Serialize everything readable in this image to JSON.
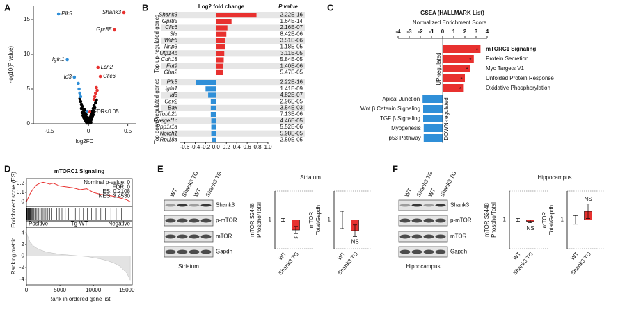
{
  "panel_labels": [
    "A",
    "B",
    "C",
    "D",
    "E",
    "F"
  ],
  "chart_data": [
    {
      "type": "scatter",
      "xlabel": "log2FC",
      "ylabel": "-log10(P value)",
      "legend_label": "FDR<0.05",
      "xlim": [
        -0.7,
        0.6
      ],
      "xticks": [
        -0.5,
        0,
        0.5
      ],
      "ylim": [
        0,
        17
      ],
      "yticks": [
        0,
        5,
        10,
        15
      ],
      "series": [
        {
          "color": "#000000",
          "x": [
            -0.1,
            -0.09,
            -0.09,
            -0.08,
            -0.08,
            -0.07,
            -0.07,
            -0.06,
            -0.06,
            -0.05,
            -0.05,
            -0.05,
            -0.04,
            -0.04,
            -0.03,
            -0.03,
            -0.03,
            -0.02,
            -0.02,
            -0.01,
            -0.01,
            0,
            0,
            0,
            0.01,
            0.01,
            0.02,
            0.02,
            0.03,
            0.03,
            0.03,
            0.04,
            0.04,
            0.05,
            0.05,
            0.06,
            0.06,
            0.07,
            0.07,
            0.08,
            0.09,
            -0.11,
            0.1,
            -0.02,
            0.02
          ],
          "values": [
            3.2,
            2.8,
            2.2,
            2.5,
            1.6,
            2.1,
            1.2,
            1.8,
            0.9,
            1.5,
            0.7,
            2.0,
            1.1,
            0.5,
            0.8,
            0.3,
            1.3,
            0.4,
            0.9,
            0.2,
            0.6,
            0.1,
            0.4,
            0.8,
            0.2,
            0.6,
            0.3,
            0.9,
            0.5,
            1.2,
            0.2,
            0.7,
            1.5,
            1.0,
            1.8,
            1.3,
            2.2,
            1.7,
            2.6,
            2.3,
            3.0,
            3.6,
            3.4,
            0.1,
            0.1
          ]
        },
        {
          "color": "#2f8fd8",
          "x": [
            -0.38,
            -0.27,
            -0.18,
            -0.13,
            -0.12,
            -0.11,
            -0.1
          ],
          "values": [
            15.8,
            9.2,
            6.7,
            5.8,
            5.0,
            4.4,
            3.9
          ],
          "labels": [
            "Plk5",
            "Igfn1",
            "Id3",
            null,
            null,
            null,
            null
          ]
        },
        {
          "color": "#e8312f",
          "x": [
            0.45,
            0.33,
            0.12,
            0.15,
            0.1,
            0.09,
            0.08,
            0.11,
            0.07
          ],
          "values": [
            16,
            13.5,
            8.1,
            6.8,
            5.2,
            4.4,
            3.9,
            4.8,
            3.5
          ],
          "labels": [
            "Shank3",
            "Gpr85",
            "Lcn2",
            "Clic6",
            null,
            null,
            null,
            null,
            null
          ]
        }
      ]
    },
    {
      "type": "bar",
      "orientation": "horizontal",
      "title": "Log2 fold change",
      "p_header": "P value",
      "xlim": [
        -0.7,
        1.0
      ],
      "xticks": [
        -0.6,
        -0.4,
        -0.2,
        {
          "value": 0,
          "label": "0.0"
        },
        0.2,
        0.4,
        0.6,
        0.8,
        {
          "value": 1,
          "label": "1.0"
        }
      ],
      "series": [
        {
          "name": "Top up-regulated genes",
          "color": "#e8312f",
          "categories": [
            "Shank3",
            "Gpr85",
            "Clic6",
            "Sla",
            "Wdr6",
            "Nrip3",
            "Utp14b",
            "Cdh18",
            "Fut9",
            "Glra2"
          ],
          "values": [
            0.78,
            0.3,
            0.22,
            0.2,
            0.18,
            0.17,
            0.16,
            0.15,
            0.14,
            0.13
          ],
          "p_values": [
            "2.22E-16",
            "1.64E-14",
            "2.16E-07",
            "8.42E-06",
            "3.51E-06",
            "1.18E-05",
            "3.11E-05",
            "5.84E-05",
            "1.40E-06",
            "5.47E-05"
          ]
        },
        {
          "name": "Top down-regulated genes",
          "color": "#2f8fd8",
          "categories": [
            "Plk5",
            "Igfn1",
            "Id3",
            "Cav2",
            "Bax",
            "Tubb2b",
            "Rasgef1c",
            "Ppp1r1a",
            "Notch1",
            "Rpl18a"
          ],
          "values": [
            -0.38,
            -0.2,
            -0.15,
            -0.1,
            -0.1,
            -0.1,
            -0.09,
            -0.09,
            -0.09,
            -0.08
          ],
          "p_values": [
            "2.22E-16",
            "1.41E-09",
            "4.82E-07",
            "2.96E-05",
            "3.54E-03",
            "7.13E-06",
            "4.46E-05",
            "5.52E-06",
            "5.98E-05",
            "2.59E-05"
          ]
        }
      ]
    },
    {
      "type": "bar",
      "orientation": "horizontal",
      "title": "GSEA (HALLMARK List)",
      "xlabel": "Normalized Enrichment Score",
      "xlim": [
        -4,
        4
      ],
      "xticks": [
        -4,
        -3,
        -2,
        -1,
        0,
        1,
        2,
        3,
        4
      ],
      "series": [
        {
          "name": "UP-regulated",
          "color": "#e8312f",
          "categories": [
            "mTORC1 Signaling",
            "Protein Secretion",
            "Myc Targets V1",
            "Unfolded Protein Response",
            "Oxidative Phosphorylation"
          ],
          "values": [
            3.4,
            2.8,
            2.5,
            2.0,
            1.9
          ],
          "annotations": [
            "*",
            "*",
            "*",
            "*",
            "*"
          ]
        },
        {
          "name": "DOWN-regulated",
          "color": "#2f8fd8",
          "categories": [
            "Apical Junction",
            "Wnt β Catenin Signaling",
            "TGF β Signaling",
            "Myogenesis",
            "p53 Pathway"
          ],
          "values": [
            -1.8,
            -1.75,
            -1.75,
            -1.7,
            -1.7
          ]
        }
      ]
    },
    {
      "type": "gsea",
      "title": "mTORC1 Signaling",
      "annotations": [
        "Nominal p-value: 0",
        "FDR: 0",
        "ES: 0.2108",
        "NES: 3.4530"
      ],
      "es_ylabel": "Enrichment score (ES)",
      "rm_ylabel": "Ranking metric",
      "xlabel": "Rank in ordered gene list",
      "strip_labels": [
        "Positive",
        "Tg-WT",
        "Negative"
      ],
      "x": [
        0,
        500,
        1000,
        1500,
        2000,
        2500,
        3000,
        3500,
        4000,
        5000,
        6000,
        7000,
        8000,
        9000,
        10000,
        11000,
        12000,
        13000,
        14000,
        15000,
        15500
      ],
      "es": [
        0,
        0.08,
        0.14,
        0.18,
        0.2,
        0.21,
        0.2,
        0.19,
        0.2,
        0.17,
        0.16,
        0.15,
        0.13,
        0.14,
        0.1,
        0.08,
        0.07,
        0.06,
        0.04,
        0.02,
        0
      ],
      "ranking_metric": [
        4,
        2.5,
        1.8,
        1.4,
        1.1,
        0.9,
        0.7,
        0.6,
        0.5,
        0.3,
        0.2,
        0.1,
        0,
        -0.1,
        -0.3,
        -0.5,
        -0.8,
        -1.2,
        -1.8,
        -3,
        -4.2
      ],
      "hits": [
        30,
        80,
        150,
        220,
        300,
        380,
        450,
        520,
        600,
        700,
        800,
        900,
        1000,
        1100,
        1250,
        1400,
        1550,
        1700,
        1850,
        2000,
        2200,
        2400,
        2600,
        2900,
        3200,
        3500,
        3800,
        4100,
        4500,
        4900,
        5300,
        5800,
        6300,
        6800,
        7300,
        7900,
        8500,
        9100,
        9700,
        10400,
        11100,
        11800,
        12600,
        13400,
        14200,
        15000
      ],
      "xlim": [
        0,
        15800
      ],
      "xticks": [
        0,
        5000,
        10000,
        15000
      ],
      "es_ylim": [
        -0.05,
        0.25
      ],
      "es_yticks": [
        0,
        0.1,
        0.2
      ],
      "rm_ylim": [
        -5,
        5
      ],
      "rm_yticks": [
        4,
        2,
        0,
        -2,
        -4
      ],
      "line_color": "#e8312f",
      "area_color": "#e3e3e3"
    },
    {
      "type": "bar",
      "title": "Striatum",
      "ylabel": [
        "mTOR S2448",
        "Phospho/Total"
      ],
      "categories": [
        "WT",
        "Shank3 TG"
      ],
      "values": [
        1,
        0.86
      ],
      "errors": [
        0.02,
        0.05
      ],
      "colors": [
        "#ffffff",
        "#e8312f"
      ],
      "annotations": [
        null,
        "**"
      ],
      "ylim": [
        0.6,
        1.4
      ],
      "yticks": [
        1
      ],
      "bar_base": 1
    },
    {
      "type": "bar",
      "ylabel": [
        "mTOR",
        "Total/Gapdh"
      ],
      "categories": [
        "WT",
        "Shank3 TG"
      ],
      "values": [
        1,
        0.85
      ],
      "errors": [
        0.12,
        0.08
      ],
      "colors": [
        "#ffffff",
        "#e8312f"
      ],
      "annotations": [
        null,
        "NS"
      ],
      "ylim": [
        0.6,
        1.4
      ],
      "yticks": [
        1
      ],
      "bar_base": 1
    },
    {
      "type": "bar",
      "title": "Hippocampus",
      "ylabel": [
        "mTOR S2448",
        "Phospho/Total"
      ],
      "categories": [
        "WT",
        "Shank3 TG"
      ],
      "values": [
        1,
        0.98
      ],
      "errors": [
        0.02,
        0.02
      ],
      "colors": [
        "#ffffff",
        "#e8312f"
      ],
      "annotations": [
        null,
        "NS"
      ],
      "ylim": [
        0.6,
        1.4
      ],
      "yticks": [
        1
      ],
      "bar_base": 1
    },
    {
      "type": "bar",
      "ylabel": [
        "mTOR",
        "Total/Gapdh"
      ],
      "categories": [
        "WT",
        "Shank3 TG"
      ],
      "values": [
        1,
        1.12
      ],
      "errors": [
        0.06,
        0.1
      ],
      "colors": [
        "#ffffff",
        "#e8312f"
      ],
      "annotations": [
        null,
        "NS"
      ],
      "ylim": [
        0.6,
        1.4
      ],
      "yticks": [
        1
      ],
      "bar_base": 1
    }
  ],
  "blots": [
    {
      "lanes": [
        "WT",
        "Shank3 TG",
        "WT",
        "Shank3 TG"
      ],
      "rows": [
        "Shank3",
        "p-mTOR",
        "mTOR",
        "Gapdh"
      ],
      "region": "Striatum"
    },
    {
      "lanes": [
        "WT",
        "Shank3 TG",
        "WT",
        "Shank3 TG"
      ],
      "rows": [
        "Shank3",
        "p-mTOR",
        "mTOR",
        "Gapdh"
      ],
      "region": "Hippocampus"
    }
  ]
}
